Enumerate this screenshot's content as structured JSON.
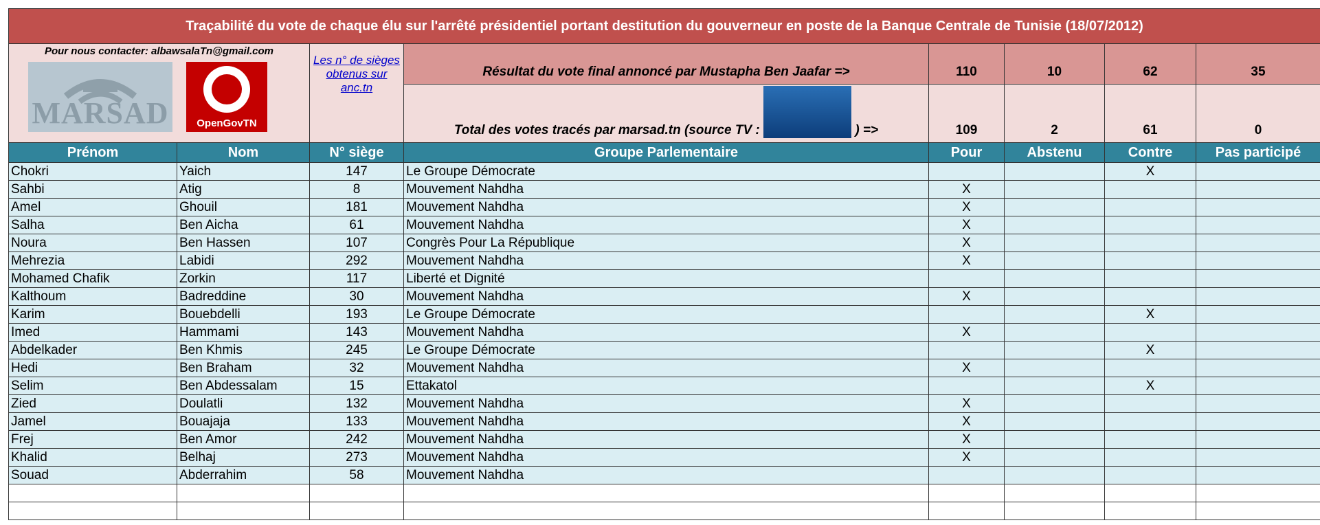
{
  "title": "Traçabilité du vote de chaque élu sur l'arrêté présidentiel portant destitution du gouverneur en poste de la Banque Centrale de Tunisie (18/07/2012)",
  "contact": "Pour nous contacter: albawsalaTn@gmail.com",
  "logos": {
    "marsad": "MARSAD",
    "opengov": "OpenGovTN"
  },
  "seat_link": "Les n° de sièges obtenus sur anc.tn",
  "result": {
    "label": "Résultat du vote final annoncé par Mustapha Ben Jaafar  =>",
    "values": [
      110,
      10,
      62,
      35
    ]
  },
  "traced": {
    "label_before": "Total des votes tracés par marsad.tn (source TV :",
    "label_after": ") =>",
    "values": [
      109,
      2,
      61,
      0
    ]
  },
  "headers": [
    "Prénom",
    "Nom",
    "N° siège",
    "Groupe Parlementaire",
    "Pour",
    "Abstenu",
    "Contre",
    "Pas participé"
  ],
  "rows": [
    {
      "prenom": "Chokri",
      "nom": "Yaich",
      "siege": 147,
      "groupe": "Le Groupe Démocrate",
      "contre": "X"
    },
    {
      "prenom": "Sahbi",
      "nom": "Atig",
      "siege": 8,
      "groupe": "Mouvement Nahdha",
      "pour": "X"
    },
    {
      "prenom": "Amel",
      "nom": "Ghouil",
      "siege": 181,
      "groupe": "Mouvement Nahdha",
      "pour": "X"
    },
    {
      "prenom": "Salha",
      "nom": "Ben Aicha",
      "siege": 61,
      "groupe": "Mouvement Nahdha",
      "pour": "X"
    },
    {
      "prenom": "Noura",
      "nom": "Ben Hassen",
      "siege": 107,
      "groupe": "Congrès Pour La République",
      "pour": "X"
    },
    {
      "prenom": "Mehrezia",
      "nom": "Labidi",
      "siege": 292,
      "groupe": "Mouvement Nahdha",
      "pour": "X"
    },
    {
      "prenom": "Mohamed Chafik",
      "nom": "Zorkin",
      "siege": 117,
      "groupe": "Liberté et Dignité"
    },
    {
      "prenom": "Kalthoum",
      "nom": "Badreddine",
      "siege": 30,
      "groupe": "Mouvement Nahdha",
      "pour": "X"
    },
    {
      "prenom": "Karim",
      "nom": "Bouebdelli",
      "siege": 193,
      "groupe": "Le Groupe Démocrate",
      "contre": "X"
    },
    {
      "prenom": "Imed",
      "nom": "Hammami",
      "siege": 143,
      "groupe": "Mouvement Nahdha",
      "pour": "X"
    },
    {
      "prenom": "Abdelkader",
      "nom": "Ben Khmis",
      "siege": 245,
      "groupe": "Le Groupe Démocrate",
      "contre": "X"
    },
    {
      "prenom": "Hedi",
      "nom": "Ben Braham",
      "siege": 32,
      "groupe": "Mouvement Nahdha",
      "pour": "X"
    },
    {
      "prenom": "Selim",
      "nom": "Ben Abdessalam",
      "siege": 15,
      "groupe": "Ettakatol",
      "contre": "X"
    },
    {
      "prenom": "Zied",
      "nom": "Doulatli",
      "siege": 132,
      "groupe": "Mouvement Nahdha",
      "pour": "X"
    },
    {
      "prenom": "Jamel",
      "nom": "Bouajaja",
      "siege": 133,
      "groupe": "Mouvement Nahdha",
      "pour": "X"
    },
    {
      "prenom": "Frej",
      "nom": "Ben Amor",
      "siege": 242,
      "groupe": "Mouvement Nahdha",
      "pour": "X"
    },
    {
      "prenom": "Khalid",
      "nom": "Belhaj",
      "siege": 273,
      "groupe": "Mouvement Nahdha",
      "pour": "X"
    },
    {
      "prenom": "Souad",
      "nom": "Abderrahim",
      "siege": 58,
      "groupe": "Mouvement Nahdha"
    }
  ]
}
